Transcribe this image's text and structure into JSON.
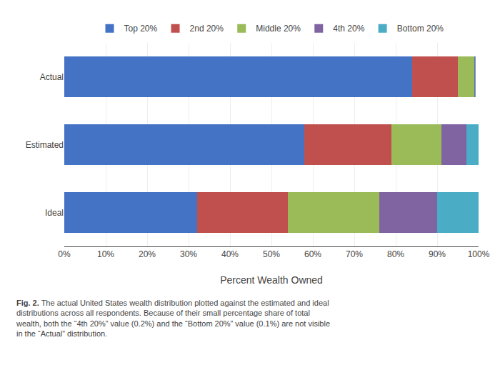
{
  "chart_data": {
    "type": "bar",
    "orientation": "horizontal",
    "stacked": true,
    "categories": [
      "Actual",
      "Estimated",
      "Ideal"
    ],
    "series": [
      {
        "name": "Top 20%",
        "color": "#4472C4",
        "values": [
          84.0,
          58.0,
          32.0
        ]
      },
      {
        "name": "2nd 20%",
        "color": "#C0504D",
        "values": [
          11.0,
          21.0,
          22.0
        ]
      },
      {
        "name": "Middle 20%",
        "color": "#9BBB59",
        "values": [
          4.0,
          12.0,
          22.0
        ]
      },
      {
        "name": "4th 20%",
        "color": "#8064A2",
        "values": [
          0.2,
          6.0,
          14.0
        ]
      },
      {
        "name": "Bottom 20%",
        "color": "#4BACC6",
        "values": [
          0.1,
          3.0,
          10.0
        ]
      }
    ],
    "xlabel": "Percent Wealth Owned",
    "xlim": [
      0,
      100
    ],
    "xticks": [
      {
        "value": 0,
        "label": "0%"
      },
      {
        "value": 10,
        "label": "10%"
      },
      {
        "value": 20,
        "label": "20%"
      },
      {
        "value": 30,
        "label": "30%"
      },
      {
        "value": 40,
        "label": "40%"
      },
      {
        "value": 50,
        "label": "50%"
      },
      {
        "value": 60,
        "label": "60%"
      },
      {
        "value": 70,
        "label": "70%"
      },
      {
        "value": 80,
        "label": "80%"
      },
      {
        "value": 90,
        "label": "90%"
      },
      {
        "value": 100,
        "label": "100%"
      }
    ],
    "grid": true,
    "legend": "top",
    "annotations": [
      "Fig. 2.",
      " The actual United States wealth distribution plotted against the estimated and ideal\ndistributions across all respondents. Because of their small percentage share of total\nwealth, both the “4th 20%” value (0.2%) and the “Bottom 20%” value (0.1%) are not visible\nin the “Actual” distribution."
    ]
  }
}
